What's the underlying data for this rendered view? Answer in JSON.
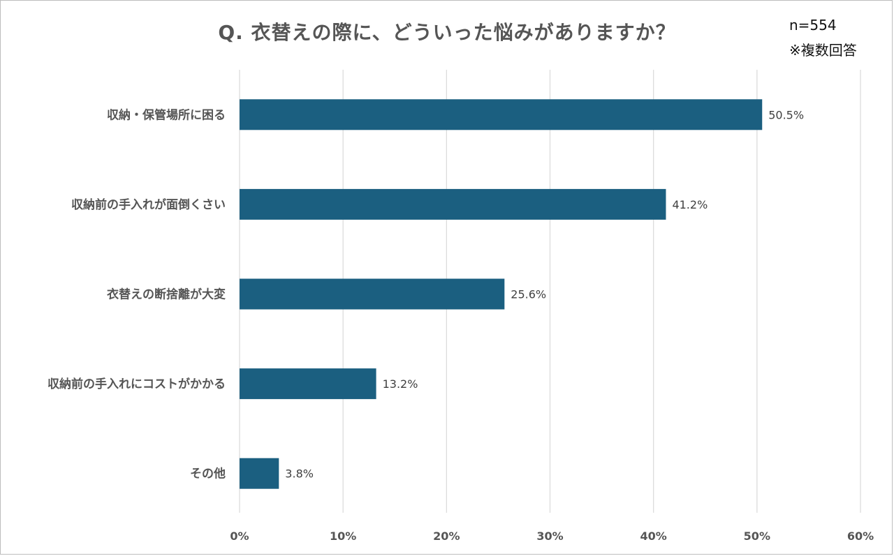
{
  "chart_data": {
    "type": "bar",
    "orientation": "horizontal",
    "title": "Q. 衣替えの際に、どういった悩みがありますか？",
    "categories": [
      "収納・保管場所に困る",
      "収納前の手入れが面倒くさい",
      "衣替えの断捨離が大変",
      "収納前の手入れにコストがかかる",
      "その他"
    ],
    "values": [
      50.5,
      41.2,
      25.6,
      13.2,
      3.8
    ],
    "data_labels": [
      "50.5%",
      "41.2%",
      "25.6%",
      "13.2%",
      "3.8%"
    ],
    "x_ticks": [
      "0%",
      "10%",
      "20%",
      "30%",
      "40%",
      "50%",
      "60%"
    ],
    "xlim": [
      0,
      60
    ],
    "grid": "vertical",
    "bar_color": "#1b5f80"
  },
  "notes": {
    "sample": "n=554",
    "multiple": "※複数回答"
  }
}
